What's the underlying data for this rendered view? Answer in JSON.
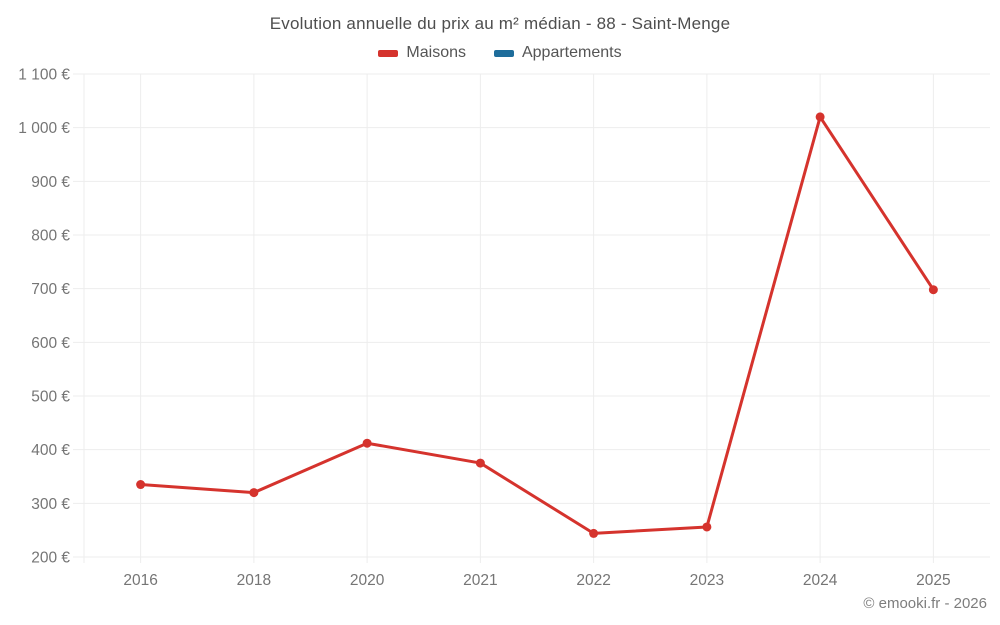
{
  "page": {
    "title": "Evolution annuelle du prix au m² médian - 88 - Saint-Menge",
    "copyright": "© emooki.fr - 2026"
  },
  "legend": {
    "items": [
      {
        "label": "Maisons",
        "color": "#d5332d"
      },
      {
        "label": "Appartements",
        "color": "#1e6d9b"
      }
    ]
  },
  "colors": {
    "grid": "#ededed",
    "tick_text": "#757575",
    "title_text": "#4e4e4e",
    "maisons": "#d5332d",
    "appartements": "#1e6d9b"
  },
  "chart_data": {
    "type": "line",
    "title": "Evolution annuelle du prix au m² médian - 88 - Saint-Menge",
    "categories": [
      "2016",
      "2018",
      "2020",
      "2021",
      "2022",
      "2023",
      "2024",
      "2025"
    ],
    "series": [
      {
        "name": "Maisons",
        "color": "#d5332d",
        "values": [
          335,
          320,
          412,
          375,
          244,
          256,
          1020,
          698
        ]
      },
      {
        "name": "Appartements",
        "color": "#1e6d9b",
        "values": []
      }
    ],
    "xlabel": "",
    "ylabel": "",
    "ylim": [
      200,
      1100
    ],
    "y_step": 100,
    "y_tick_labels": [
      "200 €",
      "300 €",
      "400 €",
      "500 €",
      "600 €",
      "700 €",
      "800 €",
      "900 €",
      "1 000 €",
      "1 100 €"
    ],
    "currency": "€",
    "grid": true,
    "legend_position": "top"
  }
}
